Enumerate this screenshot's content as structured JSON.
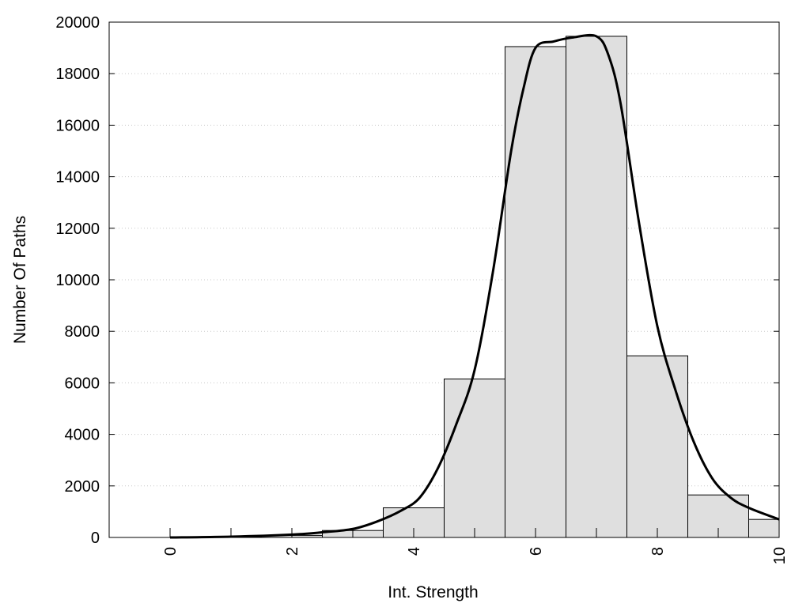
{
  "chart_data": {
    "type": "bar",
    "title": "",
    "xlabel": "Int. Strength",
    "ylabel": "Number Of Paths",
    "xlim": [
      -1,
      10
    ],
    "ylim": [
      0,
      20000
    ],
    "x_ticks": [
      0,
      2,
      4,
      6,
      8,
      10
    ],
    "y_ticks": [
      0,
      2000,
      4000,
      6000,
      8000,
      10000,
      12000,
      14000,
      16000,
      18000,
      20000
    ],
    "grid": "horizontal dotted",
    "bar_width": 1,
    "bars": [
      {
        "x": 0,
        "value": 0
      },
      {
        "x": 1,
        "value": 20
      },
      {
        "x": 2,
        "value": 80
      },
      {
        "x": 3,
        "value": 270
      },
      {
        "x": 4,
        "value": 1150
      },
      {
        "x": 5,
        "value": 6150
      },
      {
        "x": 6,
        "value": 19050
      },
      {
        "x": 7,
        "value": 19450
      },
      {
        "x": 8,
        "value": 7050
      },
      {
        "x": 9,
        "value": 1650
      },
      {
        "x": 10,
        "value": 700
      }
    ],
    "curve": {
      "x": [
        0,
        1,
        2,
        2.5,
        3,
        3.4,
        3.8,
        4.1,
        4.4,
        4.7,
        5,
        5.3,
        5.6,
        5.8,
        6,
        6.3,
        6.6,
        7,
        7.2,
        7.4,
        7.7,
        8,
        8.3,
        8.6,
        8.9,
        9.2,
        9.5,
        10
      ],
      "y": [
        0,
        30,
        110,
        200,
        330,
        620,
        1050,
        1550,
        2700,
        4400,
        6500,
        10300,
        15000,
        17400,
        19000,
        19250,
        19400,
        19450,
        18700,
        16800,
        12200,
        8200,
        5700,
        3700,
        2300,
        1550,
        1150,
        700
      ]
    },
    "colors": {
      "bar_fill": "#dfdfdf",
      "bar_stroke": "#000000",
      "curve": "#000000",
      "grid": "#c8c8c8"
    }
  }
}
